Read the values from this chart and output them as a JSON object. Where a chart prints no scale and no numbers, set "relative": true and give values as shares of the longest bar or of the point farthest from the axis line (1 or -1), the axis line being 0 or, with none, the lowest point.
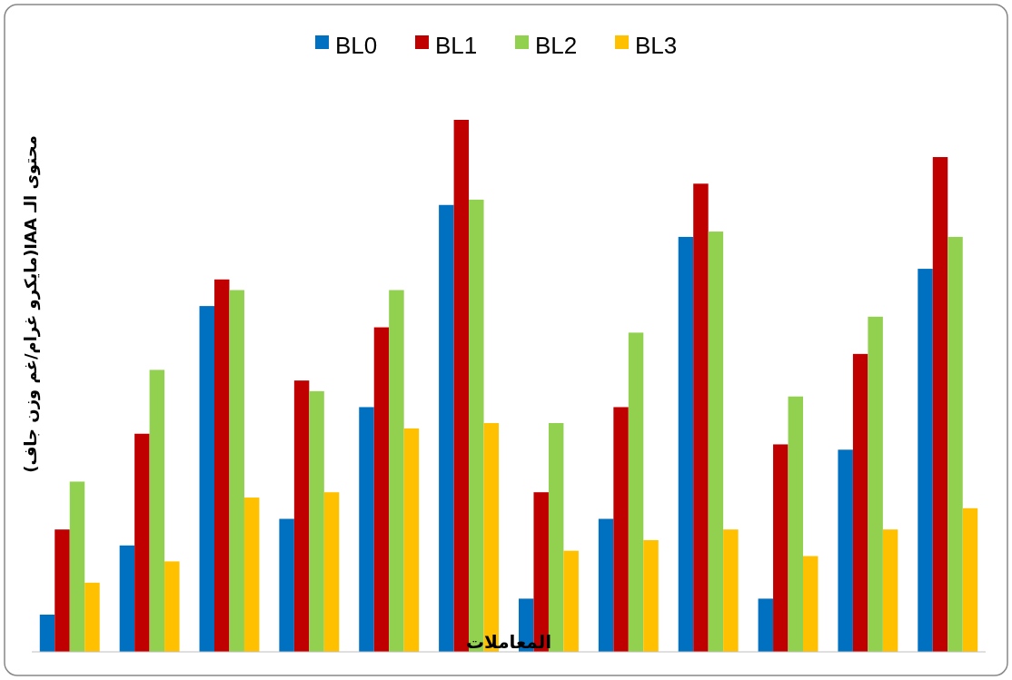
{
  "chart_data": {
    "type": "bar",
    "relative": true,
    "xlabel": "المعاملات",
    "ylabel": "محتوى الـ IAA(مايكرو غرام/غم وزن جاف)",
    "legend": "top",
    "categories": [
      null,
      null,
      null,
      null,
      null,
      null,
      null,
      null,
      null,
      null,
      null,
      null
    ],
    "series": [
      {
        "name": "BL0",
        "color": "#0070c0",
        "values": [
          0.07,
          0.2,
          0.65,
          0.25,
          0.46,
          0.84,
          0.1,
          0.25,
          0.78,
          0.1,
          0.38,
          0.72
        ]
      },
      {
        "name": "BL1",
        "color": "#c00000",
        "values": [
          0.23,
          0.41,
          0.7,
          0.51,
          0.61,
          1,
          0.3,
          0.46,
          0.88,
          0.39,
          0.56,
          0.93
        ]
      },
      {
        "name": "BL2",
        "color": "#92d050",
        "values": [
          0.32,
          0.53,
          0.68,
          0.49,
          0.68,
          0.85,
          0.43,
          0.6,
          0.79,
          0.48,
          0.63,
          0.78
        ]
      },
      {
        "name": "BL3",
        "color": "#ffc000",
        "values": [
          0.13,
          0.17,
          0.29,
          0.3,
          0.42,
          0.43,
          0.19,
          0.21,
          0.23,
          0.18,
          0.23,
          0.27
        ]
      }
    ]
  }
}
